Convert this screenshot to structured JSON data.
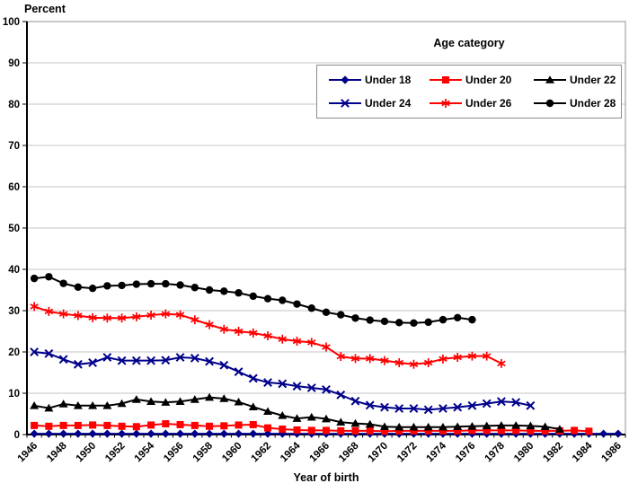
{
  "chart_data": {
    "type": "line",
    "title": "",
    "ylabel": "Percent",
    "xlabel": "Year of birth",
    "legend_title": "Age category",
    "ylim": [
      0,
      100
    ],
    "ytick_step": 10,
    "y_tick_labels": [
      "0",
      "10",
      "20",
      "30",
      "40",
      "50",
      "60",
      "70",
      "80",
      "90",
      "100"
    ],
    "x_first_year": 1946,
    "x_last_year": 1986,
    "x_label_step": 2,
    "x_tick_labels": [
      "1946",
      "1948",
      "1950",
      "1952",
      "1954",
      "1956",
      "1958",
      "1960",
      "1962",
      "1964",
      "1966",
      "1968",
      "1970",
      "1972",
      "1974",
      "1976",
      "1978",
      "1980",
      "1982",
      "1984",
      "1986"
    ],
    "grid": "horizontal",
    "legend_position": "top-right-inside",
    "colors": {
      "navy": "#00008B",
      "red": "#FF0000",
      "black": "#000000",
      "gridline": "#c6c6c6",
      "plot_border": "#909090",
      "axis": "#000000"
    },
    "series": [
      {
        "name": "Under 18",
        "color": "#00008B",
        "marker": "diamond",
        "first_year": 1946,
        "last_year": 1986,
        "values": [
          0.2,
          0.2,
          0.2,
          0.2,
          0.2,
          0.2,
          0.2,
          0.2,
          0.2,
          0.2,
          0.2,
          0.2,
          0.2,
          0.2,
          0.2,
          0.2,
          0.2,
          0.2,
          0.2,
          0.2,
          0.2,
          0.2,
          0.2,
          0.2,
          0.2,
          0.2,
          0.2,
          0.2,
          0.2,
          0.2,
          0.2,
          0.2,
          0.2,
          0.2,
          0.2,
          0.2,
          0.2,
          0.2,
          0.2,
          0.2,
          0.2
        ]
      },
      {
        "name": "Under 20",
        "color": "#FF0000",
        "marker": "square",
        "first_year": 1946,
        "last_year": 1984,
        "values": [
          2.2,
          2.0,
          2.2,
          2.2,
          2.3,
          2.2,
          2.0,
          1.9,
          2.3,
          2.6,
          2.4,
          2.2,
          2.0,
          2.1,
          2.3,
          2.4,
          1.6,
          1.3,
          1.1,
          1.0,
          1.0,
          0.9,
          0.9,
          0.9,
          0.8,
          0.9,
          0.9,
          0.9,
          0.9,
          0.9,
          1.0,
          1.0,
          1.0,
          1.0,
          0.9,
          0.9,
          0.9,
          1.0,
          0.8
        ]
      },
      {
        "name": "Under 22",
        "color": "#000000",
        "marker": "triangle",
        "first_year": 1946,
        "last_year": 1982,
        "values": [
          7.0,
          6.4,
          7.4,
          7.0,
          7.0,
          7.0,
          7.5,
          8.5,
          8.0,
          7.8,
          8.0,
          8.5,
          9.0,
          8.7,
          7.9,
          6.7,
          5.6,
          4.6,
          3.9,
          4.2,
          3.8,
          3.0,
          2.7,
          2.5,
          1.9,
          1.8,
          1.8,
          1.8,
          1.8,
          1.9,
          2.0,
          2.1,
          2.2,
          2.2,
          2.1,
          1.9,
          1.3
        ]
      },
      {
        "name": "Under 24",
        "color": "#00008B",
        "marker": "x",
        "first_year": 1946,
        "last_year": 1980,
        "values": [
          20.0,
          19.6,
          18.2,
          17.0,
          17.4,
          18.7,
          17.9,
          17.9,
          17.9,
          18.0,
          18.7,
          18.5,
          17.7,
          16.8,
          15.2,
          13.6,
          12.6,
          12.3,
          11.7,
          11.3,
          10.9,
          9.6,
          8.1,
          7.1,
          6.6,
          6.3,
          6.3,
          6.0,
          6.3,
          6.6,
          7.0,
          7.5,
          8.0,
          7.8,
          7.0
        ]
      },
      {
        "name": "Under 26",
        "color": "#FF0000",
        "marker": "asterisk",
        "first_year": 1946,
        "last_year": 1978,
        "values": [
          31.0,
          29.8,
          29.2,
          28.8,
          28.3,
          28.2,
          28.2,
          28.5,
          28.9,
          29.2,
          29.0,
          27.8,
          26.6,
          25.5,
          25.0,
          24.6,
          23.9,
          23.1,
          22.6,
          22.3,
          21.2,
          18.9,
          18.4,
          18.4,
          17.9,
          17.4,
          17.0,
          17.4,
          18.3,
          18.7,
          19.0,
          19.0,
          17.2
        ]
      },
      {
        "name": "Under 28",
        "color": "#000000",
        "marker": "circle",
        "first_year": 1946,
        "last_year": 1976,
        "values": [
          37.8,
          38.2,
          36.6,
          35.7,
          35.4,
          36.0,
          36.1,
          36.4,
          36.5,
          36.5,
          36.2,
          35.6,
          35.0,
          34.7,
          34.3,
          33.5,
          32.9,
          32.5,
          31.6,
          30.6,
          29.6,
          29.0,
          28.2,
          27.7,
          27.4,
          27.1,
          27.0,
          27.2,
          27.8,
          28.3,
          27.8
        ]
      }
    ]
  }
}
